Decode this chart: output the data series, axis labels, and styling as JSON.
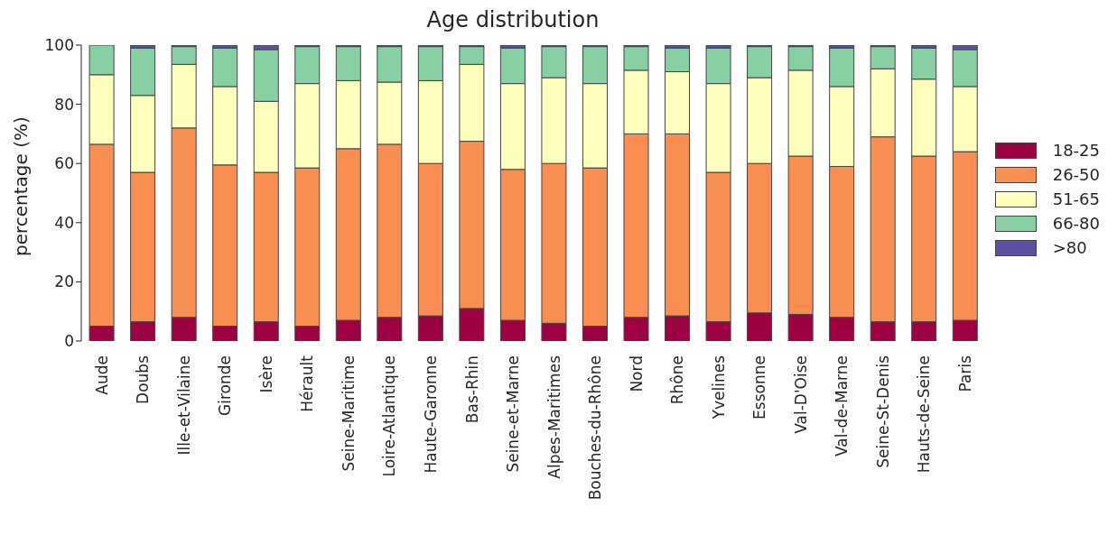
{
  "chart_data": {
    "type": "bar",
    "title": "Age distribution",
    "ylabel": "percentage (%)",
    "stacked": true,
    "categories": [
      "Aude",
      "Doubs",
      "Ille-et-Vilaine",
      "Gironde",
      "Isère",
      "Hérault",
      "Seine-Maritime",
      "Loire-Atlantique",
      "Haute-Garonne",
      "Bas-Rhin",
      "Seine-et-Marne",
      "Alpes-Maritimes",
      "Bouches-du-Rhône",
      "Nord",
      "Rhône",
      "Yvelines",
      "Essonne",
      "Val-D'Oise",
      "Val-de-Marne",
      "Seine-St-Denis",
      "Hauts-de-Seine",
      "Paris"
    ],
    "series": [
      {
        "name": "18-25",
        "color": "#9e0142",
        "values": [
          5,
          6.5,
          8,
          5,
          6.5,
          5,
          7,
          8,
          8.5,
          11,
          7,
          6,
          5,
          8,
          8.5,
          6.5,
          9.5,
          9,
          8,
          6.5,
          6.5,
          7
        ]
      },
      {
        "name": "26-50",
        "color": "#f98e52",
        "values": [
          61.5,
          50.5,
          64,
          54.5,
          50.5,
          53.5,
          58,
          58.5,
          51.5,
          56.5,
          51,
          54,
          53.5,
          62,
          61.5,
          50.5,
          50.5,
          53.5,
          51,
          62.5,
          56,
          57
        ]
      },
      {
        "name": "51-65",
        "color": "#ffffbe",
        "values": [
          23.5,
          26,
          21.5,
          26.5,
          24,
          28.5,
          23,
          21,
          28,
          26,
          29,
          29,
          28.5,
          21.5,
          21,
          30,
          29,
          29,
          27,
          23,
          26,
          22
        ]
      },
      {
        "name": "66-80",
        "color": "#88d0a4",
        "values": [
          10,
          16,
          6,
          13,
          17.5,
          12.5,
          11.5,
          12,
          11.5,
          6,
          12,
          10.5,
          12.5,
          8,
          8,
          12,
          10.5,
          8,
          13,
          7.5,
          10.5,
          12.5
        ]
      },
      {
        "name": ">80",
        "color": "#5e4fa2",
        "values": [
          0,
          1,
          0.5,
          1,
          1.5,
          0.5,
          0.5,
          0.5,
          0.5,
          0.5,
          1,
          0.5,
          0.5,
          0.5,
          1,
          1,
          0.5,
          0.5,
          1,
          0.5,
          1,
          1.5
        ]
      }
    ],
    "ylim": [
      0,
      100
    ],
    "yticks": [
      0,
      20,
      40,
      60,
      80,
      100
    ],
    "legend": "right"
  }
}
